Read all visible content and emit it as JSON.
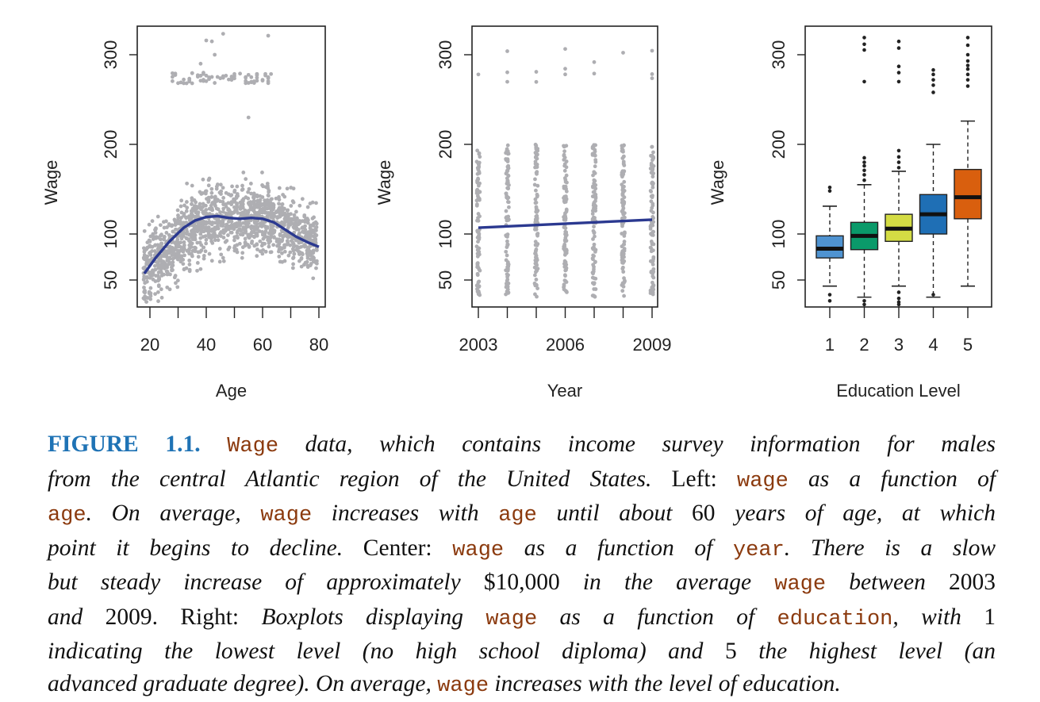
{
  "chart_data": [
    {
      "type": "scatter",
      "panel": "left",
      "xlabel": "Age",
      "ylabel": "Wage",
      "xlim": [
        17,
        81
      ],
      "ylim": [
        28,
        330
      ],
      "xticks": [
        20,
        30,
        40,
        50,
        60,
        70,
        80
      ],
      "xtick_labels": [
        "20",
        "40",
        "60",
        "80"
      ],
      "yticks": [
        50,
        100,
        200,
        300
      ],
      "ytick_labels": [
        "50",
        "100",
        "200",
        "300"
      ],
      "point_color": "#aeaeb2",
      "curve_color": "#2b3990",
      "fit_curve": [
        [
          18,
          57
        ],
        [
          22,
          74
        ],
        [
          27,
          92
        ],
        [
          32,
          107
        ],
        [
          36,
          115
        ],
        [
          40,
          119
        ],
        [
          44,
          120
        ],
        [
          48,
          118
        ],
        [
          52,
          117
        ],
        [
          56,
          118
        ],
        [
          60,
          117
        ],
        [
          64,
          113
        ],
        [
          68,
          105
        ],
        [
          72,
          97
        ],
        [
          76,
          91
        ],
        [
          80,
          86
        ]
      ]
    },
    {
      "type": "scatter",
      "panel": "center",
      "xlabel": "Year",
      "ylabel": "Wage",
      "xlim": [
        2002.9,
        2009.1
      ],
      "ylim": [
        28,
        330
      ],
      "xticks": [
        2003,
        2004,
        2005,
        2006,
        2007,
        2008,
        2009
      ],
      "xtick_labels": [
        "2003",
        "2006",
        "2009"
      ],
      "yticks": [
        50,
        100,
        200,
        300
      ],
      "ytick_labels": [
        "50",
        "100",
        "200",
        "300"
      ],
      "point_color": "#aeaeb2",
      "line_color": "#2b3990",
      "fit_line": [
        [
          2003,
          107
        ],
        [
          2009,
          116
        ]
      ]
    },
    {
      "type": "box",
      "panel": "right",
      "xlabel": "Education Level",
      "ylabel": "Wage",
      "ylim": [
        28,
        330
      ],
      "categories": [
        "1",
        "2",
        "3",
        "4",
        "5"
      ],
      "yticks": [
        50,
        100,
        200,
        300
      ],
      "ytick_labels": [
        "50",
        "100",
        "200",
        "300"
      ],
      "boxes": [
        {
          "category": "1",
          "whisker_low": 45,
          "q1": 74,
          "median": 84,
          "q3": 98,
          "whisker_high": 131,
          "color": "#4f93d1",
          "outliers": [
            148,
            152,
            38,
            33
          ]
        },
        {
          "category": "2",
          "whisker_low": 36,
          "q1": 83,
          "median": 98,
          "q3": 113,
          "whisker_high": 155,
          "color": "#0a9a6a",
          "outliers": [
            160,
            166,
            171,
            176,
            180,
            185,
            270,
            305,
            311,
            318,
            33,
            30
          ]
        },
        {
          "category": "3",
          "whisker_low": 45,
          "q1": 92,
          "median": 106,
          "q3": 122,
          "whisker_high": 170,
          "color": "#d4dc44",
          "outliers": [
            174,
            180,
            186,
            193,
            270,
            280,
            287,
            307,
            314,
            40,
            35,
            32,
            30
          ]
        },
        {
          "category": "4",
          "whisker_low": 36,
          "q1": 100,
          "median": 122,
          "q3": 144,
          "whisker_high": 200,
          "color": "#1f6fb5",
          "outliers": [
            258,
            266,
            272,
            278,
            283,
            38
          ]
        },
        {
          "category": "5",
          "whisker_low": 45,
          "q1": 117,
          "median": 141,
          "q3": 172,
          "whisker_high": 226,
          "color": "#d95f0e",
          "outliers": [
            265,
            272,
            278,
            284,
            288,
            293,
            300,
            310,
            318
          ]
        }
      ]
    }
  ],
  "caption": {
    "figure_label": "FIGURE 1.1.",
    "code_wage": "Wage",
    "t1": "data, which contains income survey information for males",
    "t2": "from the central Atlantic region of the United States.",
    "left_label": "Left:",
    "code_wage_lc": "wage",
    "t3": "as a function of",
    "code_age": "age",
    "t4": ". On average,",
    "t5": "increases with",
    "t6": "until about",
    "n60": "60",
    "t7": "years of age, at which",
    "t8": "point it begins to decline.",
    "center_label": "Center:",
    "t9": "as a function of",
    "code_year": "year",
    "t10": ". There is a slow",
    "t11": "but steady increase of approximately",
    "amount": "$10,000",
    "t12": "in the average",
    "t13": "between",
    "y2003": "2003",
    "t14": "and",
    "y2009": "2009.",
    "right_label": "Right:",
    "t15": "Boxplots displaying",
    "t16": "as a function of",
    "code_education": "education",
    "t17": ", with",
    "n1": "1",
    "t18": "indicating the lowest level (no high school diploma) and",
    "n5": "5",
    "t19": "the highest level (an",
    "t20": "advanced graduate degree). On average,",
    "t21": "increases with the level of education."
  }
}
